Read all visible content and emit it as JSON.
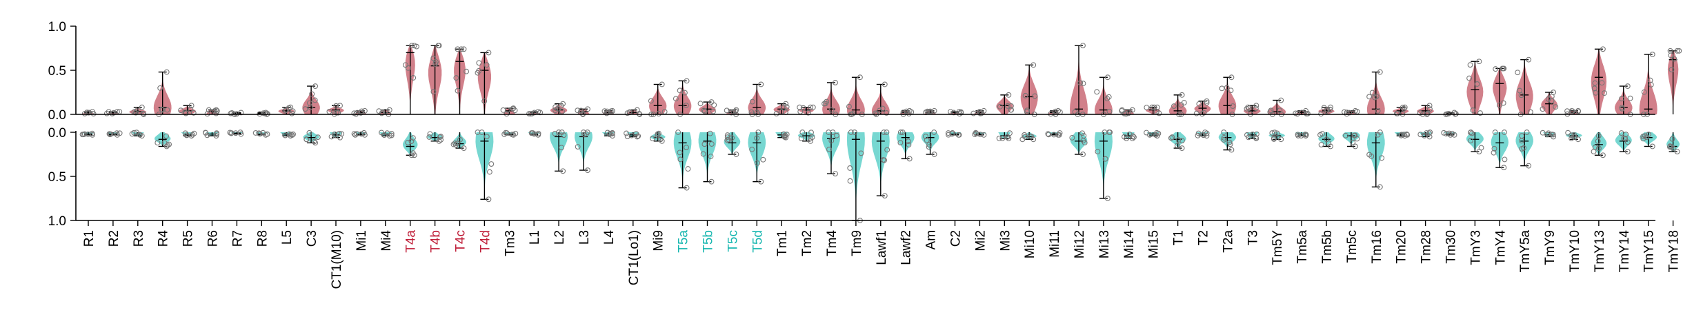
{
  "chart_data": {
    "type": "violin",
    "layout": "mirrored-panels",
    "colors": {
      "top": "#c96a75",
      "bottom": "#5fd0c9",
      "highlight_top": "#c0203a",
      "highlight_bottom": "#18b7b0",
      "point": "#777777"
    },
    "top_axis": {
      "ylim": [
        0,
        1.0
      ],
      "ticks": [
        "0.0",
        "0.5",
        "1.0"
      ]
    },
    "bottom_axis": {
      "ylim": [
        0,
        1.0
      ],
      "ticks": [
        "0.0",
        "0.5",
        "1.0"
      ],
      "inverted": true
    },
    "categories": [
      {
        "name": "R1",
        "color": "#000000",
        "top": 0.02,
        "topMax": 0.03,
        "bot": 0.02,
        "botMax": 0.03
      },
      {
        "name": "R2",
        "color": "#000000",
        "top": 0.02,
        "topMax": 0.03,
        "bot": 0.02,
        "botMax": 0.03
      },
      {
        "name": "R3",
        "color": "#000000",
        "top": 0.03,
        "topMax": 0.08,
        "bot": 0.02,
        "botMax": 0.04
      },
      {
        "name": "R4",
        "color": "#000000",
        "top": 0.08,
        "topMax": 0.48,
        "bot": 0.08,
        "botMax": 0.16
      },
      {
        "name": "R5",
        "color": "#000000",
        "top": 0.04,
        "topMax": 0.1,
        "bot": 0.03,
        "botMax": 0.04
      },
      {
        "name": "R6",
        "color": "#000000",
        "top": 0.03,
        "topMax": 0.05,
        "bot": 0.02,
        "botMax": 0.04
      },
      {
        "name": "R7",
        "color": "#000000",
        "top": 0.01,
        "topMax": 0.02,
        "bot": 0.01,
        "botMax": 0.02
      },
      {
        "name": "R8",
        "color": "#000000",
        "top": 0.01,
        "topMax": 0.02,
        "bot": 0.02,
        "botMax": 0.03
      },
      {
        "name": "L5",
        "color": "#000000",
        "top": 0.04,
        "topMax": 0.08,
        "bot": 0.02,
        "botMax": 0.04
      },
      {
        "name": "C3",
        "color": "#000000",
        "top": 0.08,
        "topMax": 0.32,
        "bot": 0.06,
        "botMax": 0.12
      },
      {
        "name": "CT1(M10)",
        "color": "#000000",
        "top": 0.05,
        "topMax": 0.1,
        "bot": 0.03,
        "botMax": 0.06
      },
      {
        "name": "Mi1",
        "color": "#000000",
        "top": 0.02,
        "topMax": 0.04,
        "bot": 0.02,
        "botMax": 0.03
      },
      {
        "name": "Mi4",
        "color": "#000000",
        "top": 0.02,
        "topMax": 0.05,
        "bot": 0.02,
        "botMax": 0.04
      },
      {
        "name": "T4a",
        "color": "#c0203a",
        "top": 0.7,
        "topMax": 0.78,
        "bot": 0.16,
        "botMax": 0.26
      },
      {
        "name": "T4b",
        "color": "#c0203a",
        "top": 0.55,
        "topMax": 0.78,
        "bot": 0.06,
        "botMax": 0.1
      },
      {
        "name": "T4c",
        "color": "#c0203a",
        "top": 0.6,
        "topMax": 0.74,
        "bot": 0.13,
        "botMax": 0.18
      },
      {
        "name": "T4d",
        "color": "#c0203a",
        "top": 0.5,
        "topMax": 0.7,
        "bot": 0.1,
        "botMax": 0.76
      },
      {
        "name": "Tm3",
        "color": "#000000",
        "top": 0.04,
        "topMax": 0.07,
        "bot": 0.02,
        "botMax": 0.03
      },
      {
        "name": "L1",
        "color": "#000000",
        "top": 0.02,
        "topMax": 0.03,
        "bot": 0.02,
        "botMax": 0.03
      },
      {
        "name": "L2",
        "color": "#000000",
        "top": 0.05,
        "topMax": 0.12,
        "bot": 0.05,
        "botMax": 0.44
      },
      {
        "name": "L3",
        "color": "#000000",
        "top": 0.03,
        "topMax": 0.06,
        "bot": 0.05,
        "botMax": 0.43
      },
      {
        "name": "L4",
        "color": "#000000",
        "top": 0.02,
        "topMax": 0.04,
        "bot": 0.02,
        "botMax": 0.04
      },
      {
        "name": "CT1(Lo1)",
        "color": "#000000",
        "top": 0.02,
        "topMax": 0.05,
        "bot": 0.03,
        "botMax": 0.05
      },
      {
        "name": "Mi9",
        "color": "#000000",
        "top": 0.1,
        "topMax": 0.34,
        "bot": 0.06,
        "botMax": 0.1
      },
      {
        "name": "T5a",
        "color": "#18b7b0",
        "top": 0.1,
        "topMax": 0.38,
        "bot": 0.12,
        "botMax": 0.63
      },
      {
        "name": "T5b",
        "color": "#18b7b0",
        "top": 0.06,
        "topMax": 0.14,
        "bot": 0.1,
        "botMax": 0.56
      },
      {
        "name": "T5c",
        "color": "#18b7b0",
        "top": 0.02,
        "topMax": 0.05,
        "bot": 0.12,
        "botMax": 0.25
      },
      {
        "name": "T5d",
        "color": "#18b7b0",
        "top": 0.08,
        "topMax": 0.34,
        "bot": 0.12,
        "botMax": 0.56
      },
      {
        "name": "Tm1",
        "color": "#000000",
        "top": 0.06,
        "topMax": 0.12,
        "bot": 0.03,
        "botMax": 0.06
      },
      {
        "name": "Tm2",
        "color": "#000000",
        "top": 0.05,
        "topMax": 0.08,
        "bot": 0.04,
        "botMax": 0.1
      },
      {
        "name": "Tm4",
        "color": "#000000",
        "top": 0.06,
        "topMax": 0.36,
        "bot": 0.07,
        "botMax": 0.47
      },
      {
        "name": "Tm9",
        "color": "#000000",
        "top": 0.05,
        "topMax": 0.42,
        "bot": 0.08,
        "botMax": 1.0
      },
      {
        "name": "Lawf1",
        "color": "#000000",
        "top": 0.04,
        "topMax": 0.34,
        "bot": 0.1,
        "botMax": 0.72
      },
      {
        "name": "Lawf2",
        "color": "#000000",
        "top": 0.02,
        "topMax": 0.04,
        "bot": 0.06,
        "botMax": 0.3
      },
      {
        "name": "Am",
        "color": "#000000",
        "top": 0.02,
        "topMax": 0.04,
        "bot": 0.06,
        "botMax": 0.25
      },
      {
        "name": "C2",
        "color": "#000000",
        "top": 0.02,
        "topMax": 0.03,
        "bot": 0.02,
        "botMax": 0.03
      },
      {
        "name": "Mi2",
        "color": "#000000",
        "top": 0.02,
        "topMax": 0.04,
        "bot": 0.02,
        "botMax": 0.03
      },
      {
        "name": "Mi3",
        "color": "#000000",
        "top": 0.1,
        "topMax": 0.22,
        "bot": 0.04,
        "botMax": 0.07
      },
      {
        "name": "Mi10",
        "color": "#000000",
        "top": 0.2,
        "topMax": 0.56,
        "bot": 0.05,
        "botMax": 0.08
      },
      {
        "name": "Mi11",
        "color": "#000000",
        "top": 0.02,
        "topMax": 0.04,
        "bot": 0.02,
        "botMax": 0.03
      },
      {
        "name": "Mi12",
        "color": "#000000",
        "top": 0.06,
        "topMax": 0.78,
        "bot": 0.1,
        "botMax": 0.25
      },
      {
        "name": "Mi13",
        "color": "#000000",
        "top": 0.05,
        "topMax": 0.42,
        "bot": 0.1,
        "botMax": 0.75
      },
      {
        "name": "Mi14",
        "color": "#000000",
        "top": 0.03,
        "topMax": 0.05,
        "bot": 0.04,
        "botMax": 0.07
      },
      {
        "name": "Mi15",
        "color": "#000000",
        "top": 0.05,
        "topMax": 0.08,
        "bot": 0.02,
        "botMax": 0.04
      },
      {
        "name": "T1",
        "color": "#000000",
        "top": 0.04,
        "topMax": 0.22,
        "bot": 0.08,
        "botMax": 0.18
      },
      {
        "name": "T2",
        "color": "#000000",
        "top": 0.07,
        "topMax": 0.15,
        "bot": 0.02,
        "botMax": 0.04
      },
      {
        "name": "T2a",
        "color": "#000000",
        "top": 0.1,
        "topMax": 0.42,
        "bot": 0.06,
        "botMax": 0.2
      },
      {
        "name": "T3",
        "color": "#000000",
        "top": 0.04,
        "topMax": 0.1,
        "bot": 0.03,
        "botMax": 0.07
      },
      {
        "name": "Tm5Y",
        "color": "#000000",
        "top": 0.03,
        "topMax": 0.16,
        "bot": 0.04,
        "botMax": 0.08
      },
      {
        "name": "Tm5a",
        "color": "#000000",
        "top": 0.02,
        "topMax": 0.04,
        "bot": 0.02,
        "botMax": 0.04
      },
      {
        "name": "Tm5b",
        "color": "#000000",
        "top": 0.04,
        "topMax": 0.08,
        "bot": 0.08,
        "botMax": 0.16
      },
      {
        "name": "Tm5c",
        "color": "#000000",
        "top": 0.02,
        "topMax": 0.04,
        "bot": 0.04,
        "botMax": 0.16
      },
      {
        "name": "Tm16",
        "color": "#000000",
        "top": 0.06,
        "topMax": 0.48,
        "bot": 0.12,
        "botMax": 0.62
      },
      {
        "name": "Tm20",
        "color": "#000000",
        "top": 0.04,
        "topMax": 0.08,
        "bot": 0.02,
        "botMax": 0.04
      },
      {
        "name": "Tm28",
        "color": "#000000",
        "top": 0.04,
        "topMax": 0.1,
        "bot": 0.02,
        "botMax": 0.05
      },
      {
        "name": "Tm30",
        "color": "#000000",
        "top": 0.01,
        "topMax": 0.02,
        "bot": 0.02,
        "botMax": 0.03
      },
      {
        "name": "TmY3",
        "color": "#000000",
        "top": 0.28,
        "topMax": 0.6,
        "bot": 0.08,
        "botMax": 0.22
      },
      {
        "name": "TmY4",
        "color": "#000000",
        "top": 0.35,
        "topMax": 0.52,
        "bot": 0.12,
        "botMax": 0.4
      },
      {
        "name": "TmY5a",
        "color": "#000000",
        "top": 0.22,
        "topMax": 0.62,
        "bot": 0.1,
        "botMax": 0.38
      },
      {
        "name": "TmY9",
        "color": "#000000",
        "top": 0.12,
        "topMax": 0.25,
        "bot": 0.03,
        "botMax": 0.05
      },
      {
        "name": "TmY10",
        "color": "#000000",
        "top": 0.02,
        "topMax": 0.04,
        "bot": 0.04,
        "botMax": 0.08
      },
      {
        "name": "TmY13",
        "color": "#000000",
        "top": 0.42,
        "topMax": 0.74,
        "bot": 0.14,
        "botMax": 0.26
      },
      {
        "name": "TmY14",
        "color": "#000000",
        "top": 0.08,
        "topMax": 0.32,
        "bot": 0.1,
        "botMax": 0.22
      },
      {
        "name": "TmY15",
        "color": "#000000",
        "top": 0.06,
        "topMax": 0.68,
        "bot": 0.06,
        "botMax": 0.16
      },
      {
        "name": "TmY18",
        "color": "#000000",
        "top": 0.62,
        "topMax": 0.72,
        "bot": 0.16,
        "botMax": 0.22
      }
    ]
  }
}
